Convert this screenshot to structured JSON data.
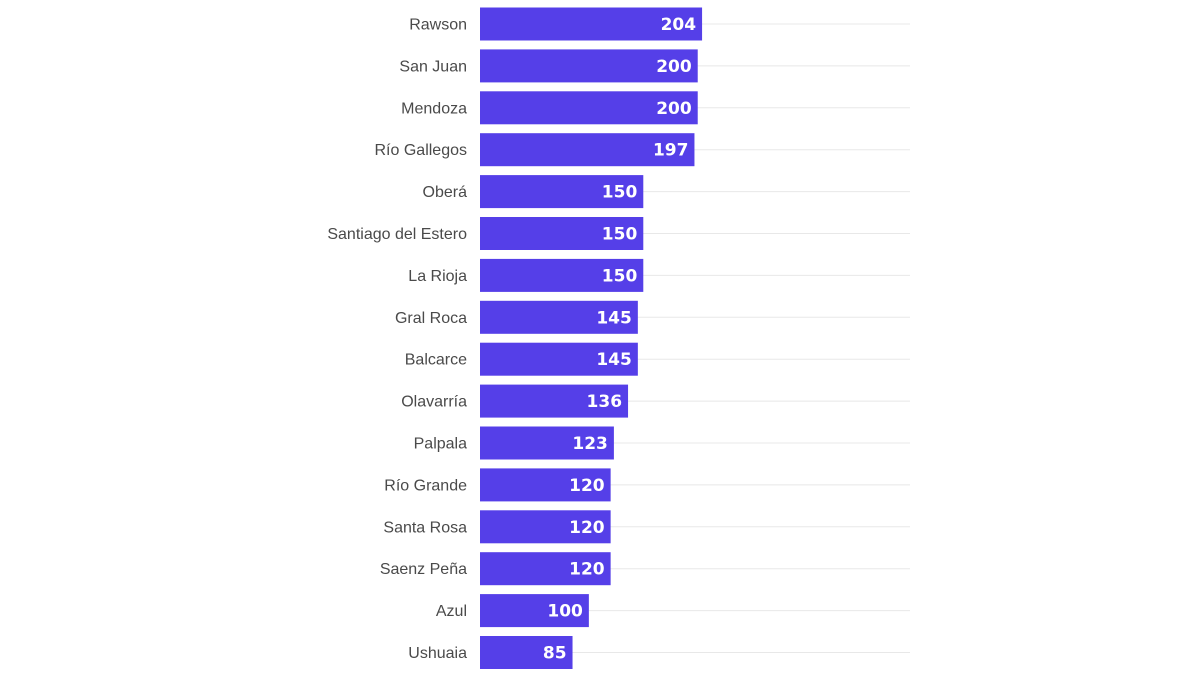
{
  "chart_data": {
    "type": "bar",
    "orientation": "horizontal",
    "categories": [
      "Rawson",
      "San Juan",
      "Mendoza",
      "Río Gallegos",
      "Oberá",
      "Santiago del Estero",
      "La Rioja",
      "Gral Roca",
      "Balcarce",
      "Olavarría",
      "Palpala",
      "Río Grande",
      "Santa Rosa",
      "Saenz Peña",
      "Azul",
      "Ushuaia"
    ],
    "values": [
      204,
      200,
      200,
      197,
      150,
      150,
      150,
      145,
      145,
      136,
      123,
      120,
      120,
      120,
      100,
      85
    ],
    "xlim": [
      0,
      395
    ],
    "grid": true,
    "legend": "none",
    "colors": {
      "bar": "#553fe8",
      "value_label": "#ffffff",
      "category_label": "#4a4a4a",
      "grid": "#e8e8e8"
    }
  }
}
